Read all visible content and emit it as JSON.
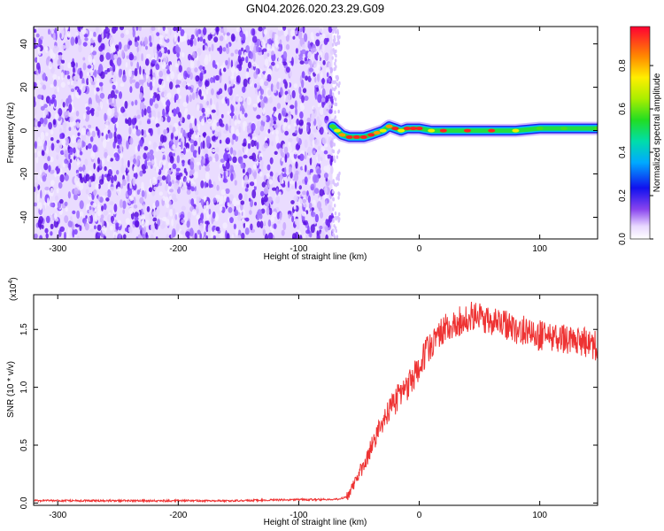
{
  "title": "GN04.2026.020.23.29.G09",
  "colors": {
    "line": "#ee3333",
    "axis": "#000000",
    "background": "#ffffff"
  },
  "chart_data": [
    {
      "type": "heatmap",
      "title": "GN04.2026.020.23.29.G09",
      "xlabel": "Height of straight line (km)",
      "ylabel": "Frequency (Hz)",
      "xlim": [
        -320,
        148
      ],
      "ylim": [
        -50,
        48
      ],
      "xticks": [
        -300,
        -200,
        -100,
        0,
        100
      ],
      "yticks": [
        -40,
        -20,
        0,
        20,
        40
      ],
      "xtick_labels": [
        "-300",
        "-200",
        "-100",
        "0",
        "100"
      ],
      "ytick_labels": [
        "-40",
        "-20",
        "0",
        "20",
        "40"
      ],
      "noise_region_x": [
        -320,
        -72
      ],
      "ridge": {
        "x": [
          -72,
          -68,
          -64,
          -58,
          -52,
          -46,
          -40,
          -35,
          -30,
          -25,
          -20,
          -15,
          -10,
          -5,
          0,
          10,
          20,
          40,
          60,
          80,
          100,
          120,
          148
        ],
        "freq": [
          2,
          0,
          -2,
          -3,
          -3,
          -3,
          -2,
          -1,
          0,
          2,
          1,
          0,
          1,
          1,
          1,
          0,
          0,
          0,
          0,
          0,
          1,
          1,
          1
        ],
        "amplitude": [
          0.4,
          0.6,
          0.8,
          0.85,
          0.9,
          0.9,
          0.85,
          0.7,
          0.6,
          0.8,
          0.9,
          0.6,
          0.85,
          0.9,
          0.9,
          0.55,
          0.9,
          0.95,
          0.95,
          0.55,
          0.5,
          0.45,
          0.4
        ]
      },
      "colorbar": {
        "label": "Normalized spectral amplitude",
        "range": [
          0.0,
          0.98
        ],
        "ticks": [
          0.0,
          0.2,
          0.4,
          0.6,
          0.8
        ],
        "tick_labels": [
          "0.0",
          "0.2",
          "0.4",
          "0.6",
          "0.8"
        ]
      }
    },
    {
      "type": "line",
      "xlabel": "Height of straight line (km)",
      "ylabel": "SNR (10 * v/v)",
      "multiplier_label": "(x10",
      "multiplier_exponent": "4",
      "multiplier_close": ")",
      "xlim": [
        -320,
        148
      ],
      "ylim": [
        -0.02,
        1.8
      ],
      "xticks": [
        -300,
        -200,
        -100,
        0,
        100
      ],
      "yticks": [
        0.0,
        0.5,
        1.0,
        1.5
      ],
      "xtick_labels": [
        "-300",
        "-200",
        "-100",
        "0",
        "100"
      ],
      "ytick_labels": [
        "0.0",
        "0.5",
        "1.0",
        "1.5"
      ],
      "series": [
        {
          "name": "SNR",
          "x": [
            -320,
            -250,
            -200,
            -150,
            -100,
            -70,
            -60,
            -55,
            -50,
            -45,
            -40,
            -35,
            -30,
            -25,
            -20,
            -15,
            -10,
            -5,
            0,
            5,
            10,
            15,
            20,
            25,
            30,
            35,
            40,
            45,
            50,
            55,
            60,
            65,
            70,
            75,
            80,
            85,
            90,
            95,
            100,
            105,
            110,
            115,
            120,
            125,
            130,
            135,
            140,
            145,
            148
          ],
          "values": [
            0.02,
            0.02,
            0.02,
            0.02,
            0.03,
            0.03,
            0.05,
            0.15,
            0.25,
            0.35,
            0.48,
            0.6,
            0.72,
            0.8,
            0.88,
            0.95,
            1.0,
            1.08,
            1.18,
            1.3,
            1.38,
            1.45,
            1.5,
            1.52,
            1.55,
            1.58,
            1.6,
            1.62,
            1.6,
            1.58,
            1.56,
            1.55,
            1.55,
            1.52,
            1.5,
            1.5,
            1.48,
            1.45,
            1.45,
            1.44,
            1.43,
            1.42,
            1.42,
            1.4,
            1.4,
            1.4,
            1.38,
            1.36,
            1.35
          ]
        }
      ]
    }
  ]
}
